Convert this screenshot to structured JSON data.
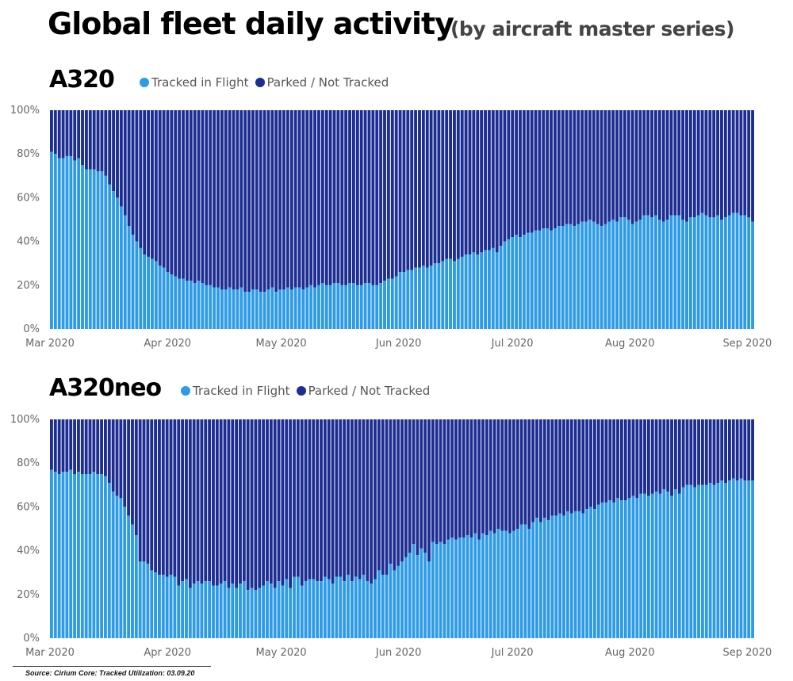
{
  "header": {
    "title": "Global fleet daily activity",
    "subtitle": "(by aircraft master series)"
  },
  "colors": {
    "tracked": "#2e9be6",
    "parked": "#1d2e92",
    "separator": "#ffffff"
  },
  "footer": {
    "source": "Source: Cirium Core: Tracked Utilization: 03.09.20"
  },
  "chart_data": [
    {
      "type": "bar",
      "stacked": true,
      "title": "A320",
      "series_names": [
        "Tracked in Flight",
        "Parked / Not Tracked"
      ],
      "y_ticks": [
        "0%",
        "20%",
        "40%",
        "60%",
        "80%",
        "100%"
      ],
      "x_ticks": [
        "Mar 2020",
        "Apr 2020",
        "May 2020",
        "Jun 2020",
        "Jul 2020",
        "Aug 2020",
        "Sep 2020"
      ],
      "ylim": [
        0,
        100
      ],
      "grid": false,
      "legend": "top-left",
      "start": "2020-03-01",
      "end": "2020-09-03",
      "tracked_percent": [
        81,
        80,
        78,
        78,
        79,
        79,
        77,
        78,
        75,
        73,
        73,
        73,
        72,
        72,
        70,
        66,
        63,
        60,
        56,
        52,
        47,
        43,
        40,
        37,
        34,
        33,
        32,
        31,
        29,
        28,
        26,
        25,
        24,
        23,
        23,
        22,
        22,
        21,
        22,
        21,
        20,
        20,
        19,
        19,
        18,
        18,
        19,
        18,
        18,
        19,
        17,
        17,
        18,
        18,
        17,
        17,
        18,
        19,
        17,
        18,
        18,
        19,
        18,
        19,
        19,
        18,
        19,
        20,
        19,
        20,
        21,
        20,
        20,
        21,
        21,
        20,
        20,
        21,
        21,
        20,
        20,
        21,
        21,
        20,
        20,
        21,
        22,
        23,
        23,
        24,
        26,
        26,
        27,
        27,
        28,
        28,
        29,
        28,
        29,
        30,
        30,
        31,
        32,
        32,
        31,
        32,
        33,
        34,
        34,
        35,
        34,
        35,
        36,
        36,
        37,
        35,
        38,
        40,
        41,
        42,
        43,
        42,
        43,
        44,
        44,
        45,
        45,
        46,
        46,
        45,
        46,
        47,
        47,
        48,
        48,
        47,
        48,
        49,
        49,
        50,
        49,
        48,
        47,
        48,
        49,
        50,
        49,
        51,
        51,
        50,
        48,
        49,
        50,
        52,
        52,
        51,
        52,
        50,
        49,
        50,
        52,
        52,
        52,
        50,
        49,
        51,
        51,
        52,
        53,
        52,
        51,
        51,
        52,
        50,
        51,
        52,
        53,
        53,
        52,
        52,
        51,
        49
      ]
    },
    {
      "type": "bar",
      "stacked": true,
      "title": "A320neo",
      "series_names": [
        "Tracked in Flight",
        "Parked / Not Tracked"
      ],
      "y_ticks": [
        "0%",
        "20%",
        "40%",
        "60%",
        "80%",
        "100%"
      ],
      "x_ticks": [
        "Mar 2020",
        "Apr 2020",
        "May 2020",
        "Jun 2020",
        "Jul 2020",
        "Aug 2020",
        "Sep 2020"
      ],
      "ylim": [
        0,
        100
      ],
      "grid": false,
      "legend": "top-left",
      "start": "2020-03-01",
      "end": "2020-09-03",
      "tracked_percent": [
        77,
        76,
        75,
        76,
        76,
        77,
        75,
        76,
        75,
        75,
        75,
        76,
        75,
        75,
        74,
        71,
        67,
        65,
        64,
        60,
        56,
        52,
        47,
        35,
        35,
        34,
        31,
        30,
        29,
        29,
        28,
        29,
        28,
        24,
        26,
        27,
        23,
        25,
        26,
        25,
        26,
        26,
        24,
        24,
        25,
        26,
        23,
        25,
        23,
        25,
        26,
        22,
        23,
        22,
        23,
        24,
        26,
        25,
        23,
        26,
        24,
        27,
        23,
        28,
        28,
        24,
        26,
        27,
        27,
        26,
        26,
        28,
        27,
        25,
        28,
        28,
        26,
        29,
        26,
        28,
        27,
        29,
        26,
        25,
        27,
        31,
        29,
        29,
        34,
        31,
        33,
        35,
        37,
        39,
        43,
        38,
        41,
        39,
        35,
        44,
        43,
        44,
        43,
        45,
        46,
        45,
        46,
        46,
        47,
        46,
        48,
        45,
        48,
        47,
        49,
        48,
        50,
        49,
        49,
        48,
        49,
        50,
        52,
        52,
        50,
        53,
        55,
        53,
        55,
        54,
        56,
        56,
        57,
        56,
        58,
        57,
        58,
        58,
        57,
        59,
        60,
        59,
        61,
        62,
        62,
        63,
        62,
        64,
        63,
        63,
        64,
        65,
        64,
        66,
        66,
        65,
        66,
        67,
        66,
        68,
        67,
        65,
        68,
        66,
        69,
        70,
        70,
        69,
        70,
        70,
        70,
        71,
        70,
        71,
        72,
        71,
        72,
        73,
        72,
        73,
        72,
        72,
        72
      ]
    }
  ]
}
